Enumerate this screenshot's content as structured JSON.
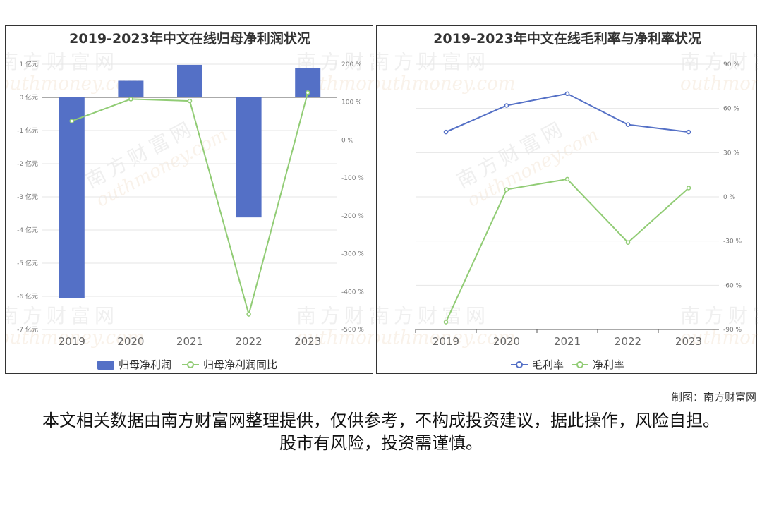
{
  "charts": [
    {
      "title": "2019-2023年中文在线归母净利润状况",
      "type": "bar+line",
      "categories": [
        "2019",
        "2020",
        "2021",
        "2022",
        "2023"
      ],
      "left_axis": {
        "ticks": [
          "1 亿元",
          "0 亿元",
          "-1 亿元",
          "-2 亿元",
          "-3 亿元",
          "-4 亿元",
          "-5 亿元",
          "-6 亿元",
          "-7 亿元"
        ],
        "min": -7,
        "max": 1
      },
      "right_axis": {
        "ticks": [
          "200 %",
          "100 %",
          "0 %",
          "-100 %",
          "-200 %",
          "-300 %",
          "-400 %",
          "-500 %"
        ],
        "min": -500,
        "max": 200
      },
      "series": [
        {
          "name": "归母净利润",
          "type": "bar",
          "axis": "left",
          "color": "#5470c6",
          "values": [
            -6.05,
            0.5,
            0.98,
            -3.62,
            0.88
          ]
        },
        {
          "name": "归母净利润同比",
          "type": "line",
          "axis": "left_pct",
          "color": "#91cc75",
          "values": [
            50,
            108,
            103,
            -460,
            125
          ]
        }
      ],
      "legend_position": "bottom"
    },
    {
      "title": "2019-2023年中文在线毛利率与净利率状况",
      "type": "line",
      "categories": [
        "2019",
        "2020",
        "2021",
        "2022",
        "2023"
      ],
      "right_axis": {
        "ticks": [
          "90 %",
          "60 %",
          "30 %",
          "0 %",
          "-30 %",
          "-60 %",
          "-90 %"
        ],
        "min": -90,
        "max": 90
      },
      "series": [
        {
          "name": "毛利率",
          "type": "line",
          "color": "#5470c6",
          "values": [
            44,
            62,
            70,
            49,
            44
          ]
        },
        {
          "name": "净利率",
          "type": "line",
          "color": "#91cc75",
          "values": [
            -85,
            5,
            12,
            -31,
            6
          ]
        }
      ],
      "legend_position": "bottom"
    }
  ],
  "watermark": {
    "cn": "南方财富网",
    "en": "outhmoney.com"
  },
  "credit": "制图：南方财富网",
  "disclaimer": "本文相关数据由南方财富网整理提供，仅供参考，不构成投资建议，据此操作，风险自担。股市有风险，投资需谨慎。"
}
